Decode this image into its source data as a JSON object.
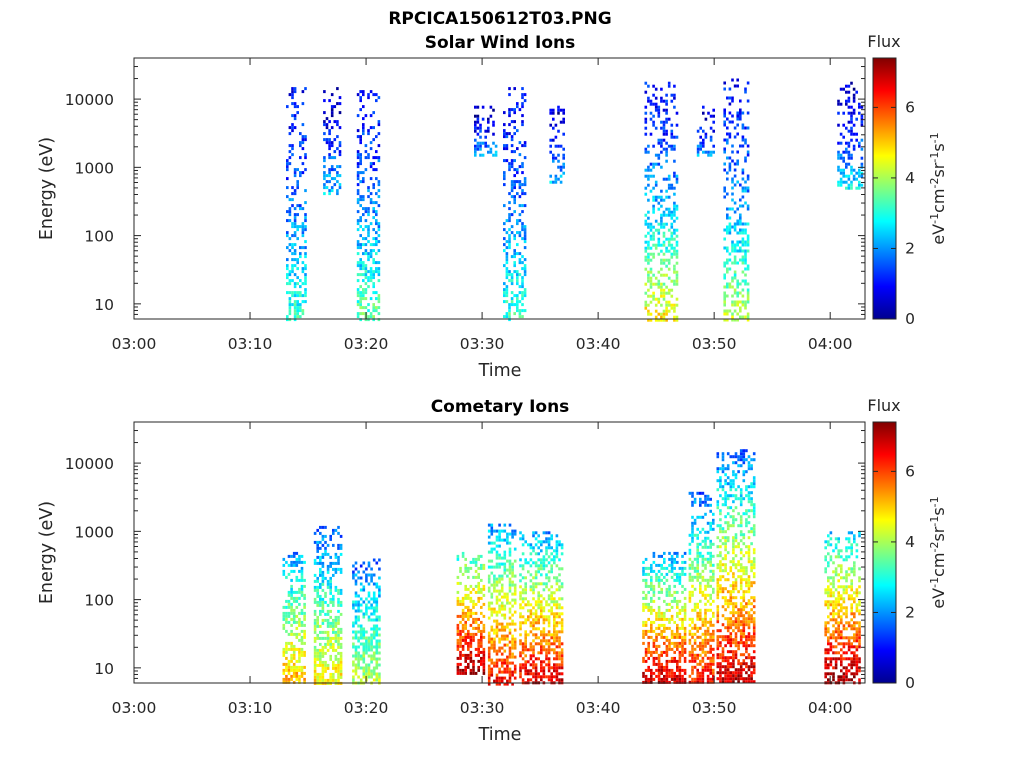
{
  "figure_title": "RPCICA150612T03.PNG",
  "chart_data": [
    {
      "type": "heatmap",
      "title": "Solar Wind Ions",
      "xlabel": "Time",
      "ylabel": "Energy (eV)",
      "xlim": [
        "03:00",
        "04:03"
      ],
      "ylim": [
        6,
        40000
      ],
      "yscale": "log",
      "x_ticks": [
        "03:00",
        "03:10",
        "03:20",
        "03:30",
        "03:40",
        "03:50",
        "04:00"
      ],
      "y_ticks": [
        "10",
        "100",
        "1000",
        "10000"
      ],
      "colorbar": {
        "title": "Flux",
        "label": "eV-1cm-2sr-1s-1",
        "ticks": [
          "0",
          "2",
          "4",
          "6"
        ],
        "range": [
          0,
          7.4
        ],
        "colormap": "jet"
      },
      "bursts": [
        {
          "t0": 13.1,
          "t1": 14.7,
          "e_lo": 6,
          "e_hi": 15000,
          "v_lo": 1.0,
          "v_hi": 3.2
        },
        {
          "t0": 16.3,
          "t1": 17.8,
          "e_lo": 400,
          "e_hi": 15000,
          "v_lo": 0.5,
          "v_hi": 2.5
        },
        {
          "t0": 19.2,
          "t1": 21.0,
          "e_lo": 6,
          "e_hi": 15000,
          "v_lo": 1.0,
          "v_hi": 3.6
        },
        {
          "t0": 29.3,
          "t1": 31.2,
          "e_lo": 1500,
          "e_hi": 8000,
          "v_lo": 0.5,
          "v_hi": 2.2
        },
        {
          "t0": 31.8,
          "t1": 33.8,
          "e_lo": 6,
          "e_hi": 15000,
          "v_lo": 1.0,
          "v_hi": 3.2
        },
        {
          "t0": 35.8,
          "t1": 37.0,
          "e_lo": 600,
          "e_hi": 8000,
          "v_lo": 0.5,
          "v_hi": 2.5
        },
        {
          "t0": 44.0,
          "t1": 46.8,
          "e_lo": 6,
          "e_hi": 18000,
          "v_lo": 1.0,
          "v_hi": 4.8
        },
        {
          "t0": 48.5,
          "t1": 50.0,
          "e_lo": 1500,
          "e_hi": 8000,
          "v_lo": 0.5,
          "v_hi": 2.2
        },
        {
          "t0": 50.8,
          "t1": 53.0,
          "e_lo": 6,
          "e_hi": 20000,
          "v_lo": 1.0,
          "v_hi": 4.2
        },
        {
          "t0": 60.6,
          "t1": 62.8,
          "e_lo": 500,
          "e_hi": 18000,
          "v_lo": 0.5,
          "v_hi": 2.8
        }
      ]
    },
    {
      "type": "heatmap",
      "title": "Cometary Ions",
      "xlabel": "Time",
      "ylabel": "Energy (eV)",
      "xlim": [
        "03:00",
        "04:03"
      ],
      "ylim": [
        6,
        40000
      ],
      "yscale": "log",
      "x_ticks": [
        "03:00",
        "03:10",
        "03:20",
        "03:30",
        "03:40",
        "03:50",
        "04:00"
      ],
      "y_ticks": [
        "10",
        "100",
        "1000",
        "10000"
      ],
      "colorbar": {
        "title": "Flux",
        "label": "eV-1cm-2sr-1s-1",
        "ticks": [
          "0",
          "2",
          "4",
          "6"
        ],
        "range": [
          0,
          7.4
        ],
        "colormap": "jet"
      },
      "bursts": [
        {
          "t0": 12.8,
          "t1": 14.8,
          "e_lo": 6,
          "e_hi": 500,
          "v_lo": 2.0,
          "v_hi": 5.2
        },
        {
          "t0": 15.5,
          "t1": 17.8,
          "e_lo": 6,
          "e_hi": 1200,
          "v_lo": 1.5,
          "v_hi": 4.8
        },
        {
          "t0": 18.8,
          "t1": 21.2,
          "e_lo": 6,
          "e_hi": 400,
          "v_lo": 1.5,
          "v_hi": 4.2
        },
        {
          "t0": 27.8,
          "t1": 30.2,
          "e_lo": 8,
          "e_hi": 500,
          "v_lo": 3.0,
          "v_hi": 7.2
        },
        {
          "t0": 30.5,
          "t1": 32.8,
          "e_lo": 6,
          "e_hi": 1300,
          "v_lo": 2.0,
          "v_hi": 6.5
        },
        {
          "t0": 33.2,
          "t1": 36.8,
          "e_lo": 6,
          "e_hi": 1000,
          "v_lo": 2.0,
          "v_hi": 6.8
        },
        {
          "t0": 43.8,
          "t1": 47.5,
          "e_lo": 6,
          "e_hi": 500,
          "v_lo": 2.0,
          "v_hi": 7.0
        },
        {
          "t0": 47.8,
          "t1": 50.0,
          "e_lo": 6,
          "e_hi": 3800,
          "v_lo": 1.5,
          "v_hi": 6.5
        },
        {
          "t0": 50.2,
          "t1": 53.5,
          "e_lo": 6,
          "e_hi": 16000,
          "v_lo": 1.5,
          "v_hi": 7.0
        },
        {
          "t0": 59.5,
          "t1": 62.5,
          "e_lo": 6,
          "e_hi": 1000,
          "v_lo": 2.5,
          "v_hi": 7.2
        }
      ]
    }
  ]
}
